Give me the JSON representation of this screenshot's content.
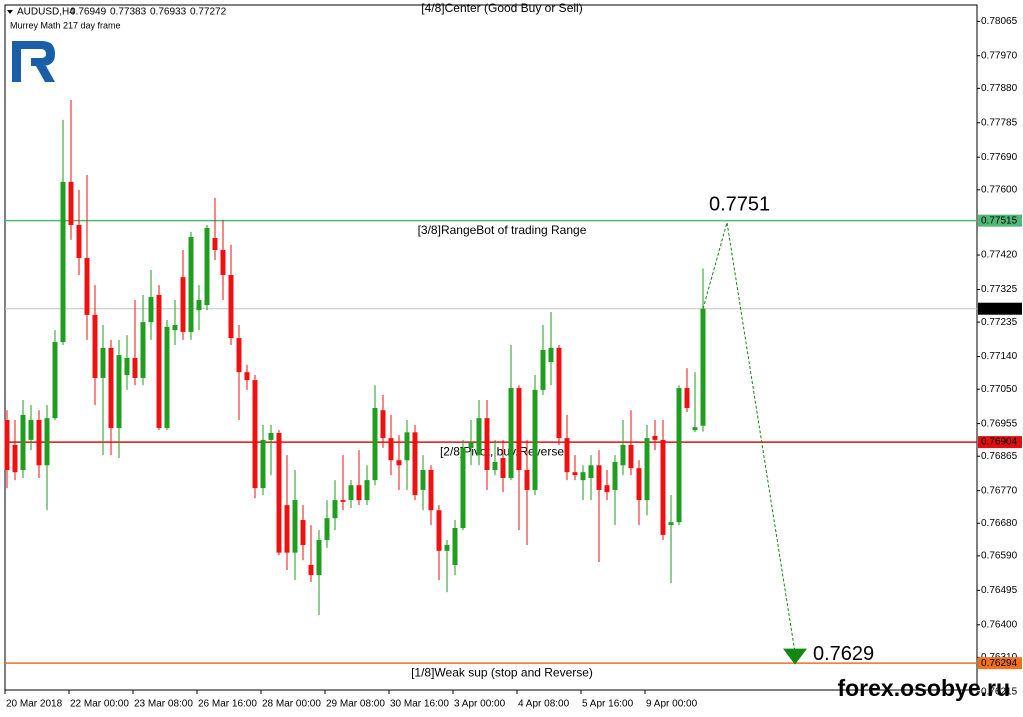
{
  "chart_data": {
    "type": "candlestick",
    "symbol": "AUDUSD,H4",
    "subtitle": "Murrey Math 217 day frame",
    "top_label": "[4/8]Center (Good Buy or Sell)",
    "top_label_color": "#3a3ad0",
    "watermark": "forex.osobye.ru",
    "up_color": "#1f9e1f",
    "down_color": "#ee1111",
    "categories": [
      "20 Mar 2018",
      null,
      null,
      null,
      null,
      null,
      null,
      null,
      "22 Mar 00:00",
      null,
      null,
      null,
      null,
      null,
      null,
      null,
      "23 Mar 08:00",
      null,
      null,
      null,
      null,
      null,
      null,
      null,
      "26 Mar 16:00",
      null,
      null,
      null,
      null,
      null,
      null,
      null,
      "28 Mar 00:00",
      null,
      null,
      null,
      null,
      null,
      null,
      null,
      "29 Mar 08:00",
      null,
      null,
      null,
      null,
      null,
      null,
      null,
      "30 Mar 16:00",
      null,
      null,
      null,
      null,
      null,
      null,
      null,
      "3 Apr 00:00",
      null,
      null,
      null,
      null,
      null,
      null,
      null,
      "4 Apr 08:00",
      null,
      null,
      null,
      null,
      null,
      null,
      null,
      "5 Apr 16:00",
      null,
      null,
      null,
      null,
      null,
      null,
      null,
      "9 Apr 00:00",
      null,
      null,
      null,
      null,
      null,
      null,
      null
    ],
    "open": [
      0.76965,
      0.76896,
      0.76827,
      0.7691,
      0.76965,
      0.7684,
      0.7697,
      0.7718,
      0.77622,
      0.77503,
      0.77412,
      0.77255,
      0.77081,
      0.77164,
      0.76943,
      0.77089,
      0.77136,
      0.77081,
      0.77235,
      0.7731,
      0.76943,
      0.77213,
      0.77359,
      0.77208,
      0.77268,
      0.77282,
      0.77467,
      0.77434,
      0.77365,
      0.77191,
      0.77097,
      0.77075,
      0.76777,
      0.7691,
      0.76929,
      0.7673,
      0.76599,
      0.76689,
      0.76565,
      0.76537,
      0.76634,
      0.76694,
      0.76744,
      0.76744,
      0.76785,
      0.76744,
      0.76799,
      0.76992,
      0.76915,
      0.76854,
      0.76854,
      0.76931,
      0.76772,
      0.76827,
      0.76716,
      0.76604,
      0.76565,
      0.76667,
      0.76888,
      0.76868,
      0.7697,
      0.76827,
      0.7686,
      0.76805,
      0.77053,
      0.76827,
      0.76772,
      0.77048,
      0.77125,
      0.77164,
      0.76915,
      0.76821,
      0.76799,
      0.76805,
      0.7684,
      0.76785,
      0.76772,
      0.7684,
      0.76896,
      0.76832,
      0.76744,
      0.76921,
      0.7691,
      0.76675,
      0.76683,
      0.77053,
      0.76937,
      0.76949
    ],
    "high": [
      0.76992,
      0.76965,
      0.7702,
      0.77006,
      0.76992,
      0.77006,
      0.77213,
      0.77793,
      0.77848,
      0.776,
      0.77641,
      0.77337,
      0.77227,
      0.77186,
      0.77186,
      0.77199,
      0.77296,
      0.7731,
      0.77379,
      0.77337,
      0.77241,
      0.77296,
      0.77434,
      0.77484,
      0.77337,
      0.77503,
      0.77578,
      0.77517,
      0.77448,
      0.77227,
      0.77117,
      0.77089,
      0.76951,
      0.76951,
      0.76937,
      0.76868,
      0.76827,
      0.7673,
      0.76675,
      0.76661,
      0.76744,
      0.76799,
      0.76868,
      0.76799,
      0.76882,
      0.7684,
      0.77061,
      0.77034,
      0.76979,
      0.76923,
      0.76965,
      0.76951,
      0.76868,
      0.7684,
      0.7673,
      0.76634,
      0.76689,
      0.7691,
      0.76965,
      0.7702,
      0.7702,
      0.7691,
      0.7691,
      0.77172,
      0.77061,
      0.7691,
      0.77089,
      0.77227,
      0.77263,
      0.77172,
      0.76979,
      0.76868,
      0.7684,
      0.76868,
      0.76882,
      0.76827,
      0.76868,
      0.76965,
      0.76992,
      0.76854,
      0.76951,
      0.76965,
      0.76965,
      0.76758,
      0.77061,
      0.77108,
      0.77097,
      0.77383
    ],
    "low": [
      0.76777,
      0.76799,
      0.76805,
      0.76882,
      0.76805,
      0.76716,
      0.76965,
      0.77172,
      0.77462,
      0.77365,
      0.77186,
      0.77006,
      0.76868,
      0.76868,
      0.7686,
      0.77048,
      0.77061,
      0.77061,
      0.77186,
      0.76937,
      0.76937,
      0.77172,
      0.77186,
      0.77186,
      0.77213,
      0.77268,
      0.77406,
      0.77296,
      0.77172,
      0.76965,
      0.77048,
      0.76749,
      0.76758,
      0.76813,
      0.76592,
      0.76551,
      0.76523,
      0.76578,
      0.76518,
      0.76427,
      0.76612,
      0.76661,
      0.76716,
      0.76722,
      0.7673,
      0.7673,
      0.76785,
      0.76888,
      0.76813,
      0.76772,
      0.76772,
      0.76744,
      0.76716,
      0.76675,
      0.76523,
      0.7649,
      0.76537,
      0.76661,
      0.7684,
      0.7684,
      0.76772,
      0.76813,
      0.76766,
      0.76799,
      0.76661,
      0.7662,
      0.76758,
      0.77034,
      0.77061,
      0.76896,
      0.76799,
      0.76799,
      0.76744,
      0.76744,
      0.76573,
      0.76744,
      0.76675,
      0.76813,
      0.76813,
      0.76675,
      0.76702,
      0.76882,
      0.76634,
      0.76515,
      0.76675,
      0.76987,
      0.76932,
      0.76933
    ],
    "close": [
      0.76827,
      0.76821,
      0.76979,
      0.76965,
      0.7684,
      0.7697,
      0.7718,
      0.77622,
      0.77503,
      0.77412,
      0.77255,
      0.77081,
      0.77164,
      0.76943,
      0.77144,
      0.77136,
      0.77081,
      0.77235,
      0.77304,
      0.76943,
      0.77222,
      0.77227,
      0.77208,
      0.7747,
      0.77296,
      0.77495,
      0.77434,
      0.77365,
      0.77191,
      0.77097,
      0.77075,
      0.76777,
      0.7691,
      0.76929,
      0.76599,
      0.76599,
      0.76744,
      0.7662,
      0.76537,
      0.76634,
      0.76694,
      0.76744,
      0.76739,
      0.76785,
      0.76744,
      0.76799,
      0.76998,
      0.76915,
      0.76854,
      0.7684,
      0.76931,
      0.76758,
      0.76827,
      0.76716,
      0.76604,
      0.7662,
      0.76667,
      0.76888,
      0.76904,
      0.7697,
      0.76827,
      0.76849,
      0.76805,
      0.77053,
      0.76827,
      0.76772,
      0.77048,
      0.77158,
      0.77164,
      0.76915,
      0.76821,
      0.76813,
      0.76821,
      0.7684,
      0.76772,
      0.76766,
      0.76849,
      0.76896,
      0.76832,
      0.76744,
      0.76915,
      0.7691,
      0.76648,
      0.76683,
      0.77053,
      0.76998,
      0.76945,
      0.77272
    ],
    "ylim": [
      0.7622,
      0.7811
    ],
    "yticks": [
      0.78065,
      {
        "value": 0.7797,
        "label": "0.77970"
      },
      {
        "value": 0.7788,
        "label": "0.77880"
      },
      0.77785,
      {
        "value": 0.7769,
        "label": "0.77690"
      },
      {
        "value": 0.776,
        "label": "0.77600"
      },
      {
        "value": 0.7742,
        "label": "0.77420"
      },
      0.77325,
      0.77235,
      {
        "value": 0.7714,
        "label": "0.77140"
      },
      {
        "value": 0.7705,
        "label": "0.77050"
      },
      0.76955,
      0.76865,
      {
        "value": 0.7677,
        "label": "0.76770"
      },
      {
        "value": 0.7668,
        "label": "0.76680"
      },
      {
        "value": 0.7659,
        "label": "0.76590"
      },
      0.76495,
      {
        "value": 0.764,
        "label": "0.76400"
      },
      {
        "value": 0.7631,
        "label": "0.76310"
      },
      0.76215
    ],
    "levels": [
      {
        "value": 0.77515,
        "label": "[3/8]RangeBot of trading Range",
        "color": "#52b878"
      },
      {
        "value": 0.76904,
        "label": "[2/8]Pivot, buy/Reverse",
        "color": "#e01010"
      },
      {
        "value": 0.76294,
        "label": "[1/8]Weak sup (stop and Reverse)",
        "color": "#f07020"
      }
    ],
    "current_price_color": "#c4c4c4",
    "forecast": {
      "values": [
        0.7751,
        0.7629
      ],
      "color": "#118811"
    }
  }
}
